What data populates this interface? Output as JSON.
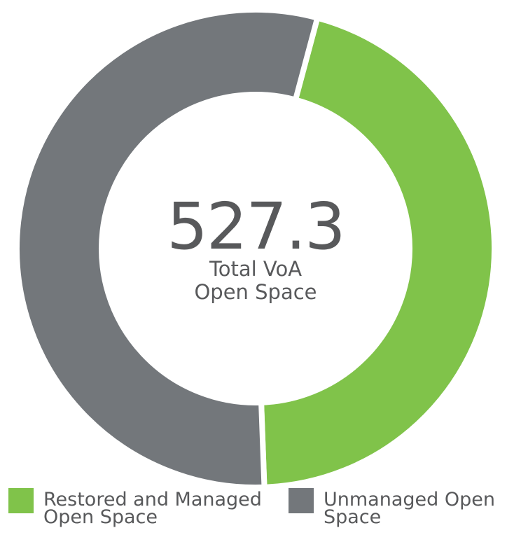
{
  "chart_data": {
    "type": "donut",
    "total": 527.3,
    "total_label": "Total VoA Open Space",
    "categories": [
      "Restored and Managed Open Space",
      "Unmanaged Open Space"
    ],
    "values": [
      238.6,
      288.7
    ],
    "colors": [
      "#80c34a",
      "#73777b"
    ]
  }
}
